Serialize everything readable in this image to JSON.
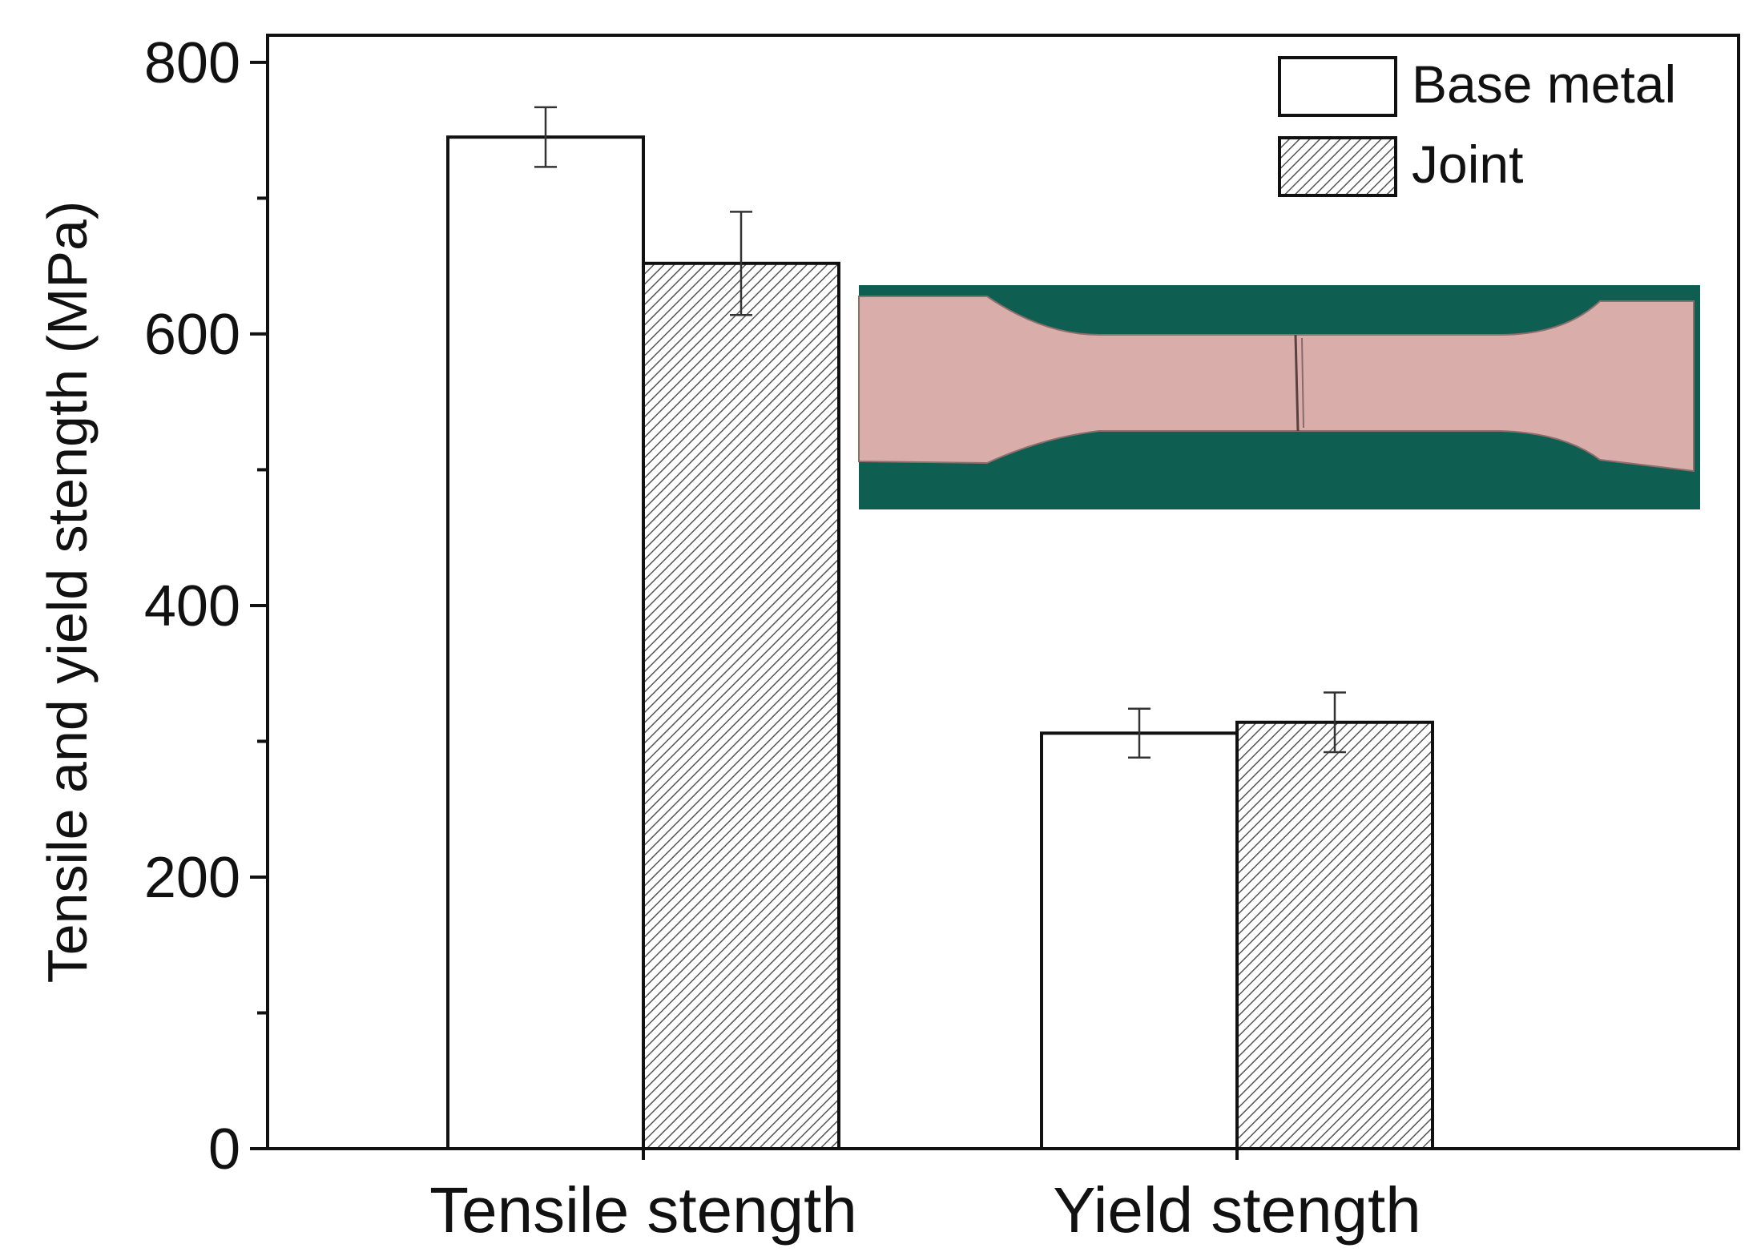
{
  "colors": {
    "base_metal_fill": "#ffffff",
    "joint_hatch": "#555555",
    "bar_outline": "#111111",
    "inset_background": "#0e5e52",
    "inset_specimen": "#d9aeaa"
  },
  "chart_data": {
    "type": "bar",
    "title": "",
    "xlabel": "",
    "ylabel": "Tensile and yield stength (MPa)",
    "ylim": [
      0,
      800
    ],
    "y_ticks": [
      "0",
      "200",
      "400",
      "600",
      "800"
    ],
    "categories": [
      "Tensile stength",
      "Yield stength"
    ],
    "series": [
      {
        "name": "Base metal",
        "pattern": "solid-white",
        "values": [
          745,
          306
        ],
        "errors": [
          22,
          18
        ]
      },
      {
        "name": "Joint",
        "pattern": "diagonal-hatch",
        "values": [
          652,
          314
        ],
        "errors": [
          38,
          22
        ]
      }
    ],
    "legend_position": "top-right",
    "grid": false,
    "inset": {
      "description_icon": "tensile-specimen-photo",
      "position": "upper-right"
    }
  }
}
